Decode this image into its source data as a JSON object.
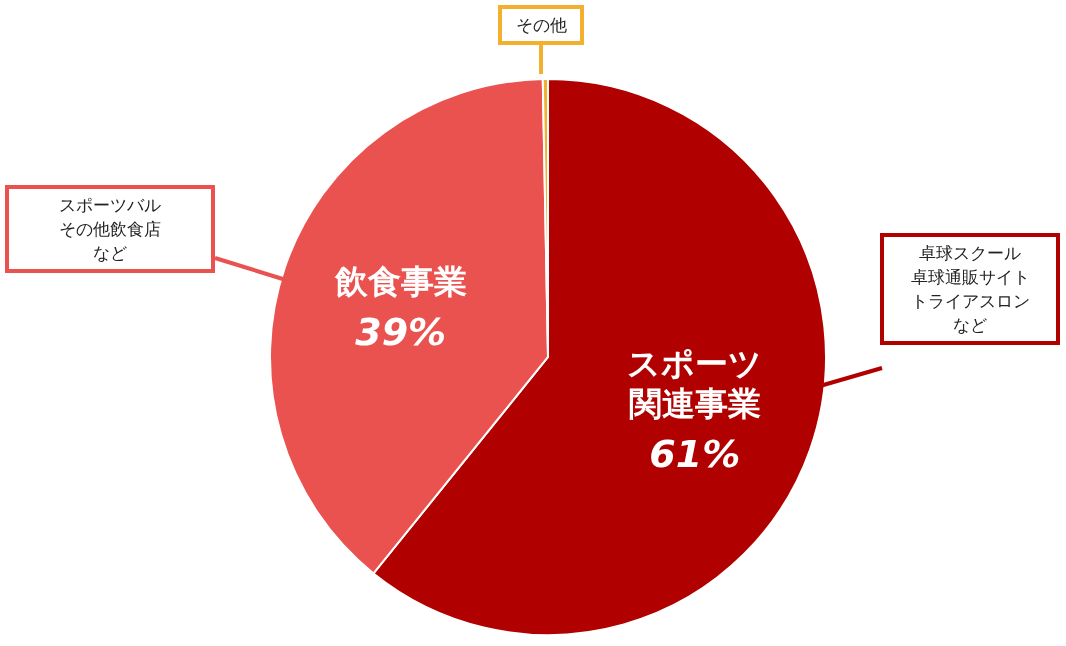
{
  "chart_data": {
    "type": "pie",
    "categories": [
      "スポーツ関連事業",
      "飲食事業",
      "その他"
    ],
    "values": [
      60.8,
      38.9,
      0.3
    ],
    "value_labels": [
      "61%",
      "39%",
      null
    ],
    "colors": [
      "#b10000",
      "#ea5250",
      "#f2b02e"
    ],
    "annotations": [
      "卓球スクール卓球通販サイトトライアスロンなど",
      "スポーツバルその他飲食店など"
    ]
  }
}
